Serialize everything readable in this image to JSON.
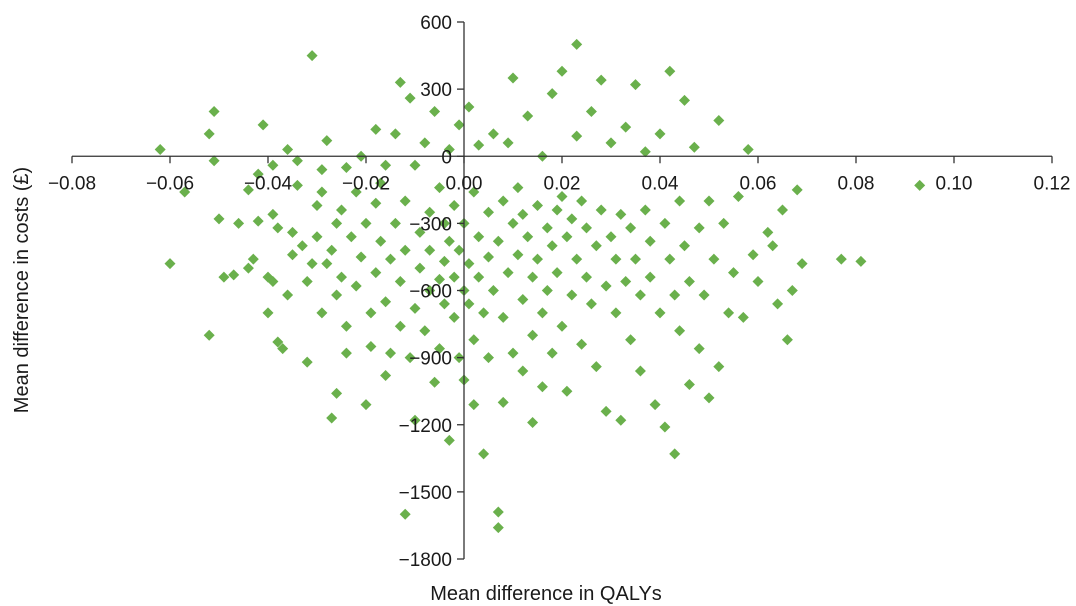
{
  "chart_data": {
    "type": "scatter",
    "xlabel": "Mean difference in QALYs",
    "ylabel": "Mean difference in costs (£)",
    "xlim": [
      -0.08,
      0.12
    ],
    "ylim": [
      -1800,
      600
    ],
    "x_ticks": [
      -0.08,
      -0.06,
      -0.04,
      -0.02,
      0.0,
      0.02,
      0.04,
      0.06,
      0.08,
      0.1,
      0.12
    ],
    "x_tick_labels": [
      "−0.08",
      "−0.06",
      "−0.04",
      "−0.02",
      "0.00",
      "0.02",
      "0.04",
      "0.06",
      "0.08",
      "0.10",
      "0.12"
    ],
    "y_ticks": [
      600,
      300,
      0,
      -300,
      -600,
      -900,
      -1200,
      -1500,
      -1800
    ],
    "y_tick_labels": [
      "600",
      "300",
      "0",
      "−300",
      "−600",
      "−900",
      "−1200",
      "−1500",
      "−1800"
    ],
    "grid": false,
    "legend": false,
    "marker": "diamond",
    "color": "#6ab04c",
    "points": [
      [
        -0.062,
        30
      ],
      [
        -0.06,
        -480
      ],
      [
        -0.057,
        -160
      ],
      [
        -0.052,
        100
      ],
      [
        -0.051,
        200
      ],
      [
        -0.051,
        -20
      ],
      [
        -0.052,
        -800
      ],
      [
        -0.05,
        -280
      ],
      [
        -0.049,
        -540
      ],
      [
        -0.047,
        -530
      ],
      [
        -0.046,
        -300
      ],
      [
        -0.044,
        -500
      ],
      [
        -0.043,
        -460
      ],
      [
        -0.042,
        -290
      ],
      [
        -0.044,
        -150
      ],
      [
        -0.041,
        140
      ],
      [
        -0.042,
        -80
      ],
      [
        -0.04,
        -540
      ],
      [
        -0.04,
        -700
      ],
      [
        -0.039,
        -560
      ],
      [
        -0.039,
        -40
      ],
      [
        -0.039,
        -260
      ],
      [
        -0.038,
        -320
      ],
      [
        -0.038,
        -830
      ],
      [
        -0.037,
        -860
      ],
      [
        -0.036,
        30
      ],
      [
        -0.036,
        -620
      ],
      [
        -0.035,
        -440
      ],
      [
        -0.035,
        -340
      ],
      [
        -0.034,
        -20
      ],
      [
        -0.034,
        -130
      ],
      [
        -0.033,
        -400
      ],
      [
        -0.032,
        -920
      ],
      [
        -0.032,
        -560
      ],
      [
        -0.031,
        -480
      ],
      [
        -0.031,
        450
      ],
      [
        -0.03,
        -220
      ],
      [
        -0.03,
        -360
      ],
      [
        -0.029,
        -700
      ],
      [
        -0.029,
        -160
      ],
      [
        -0.029,
        -60
      ],
      [
        -0.028,
        70
      ],
      [
        -0.028,
        -480
      ],
      [
        -0.027,
        -1170
      ],
      [
        -0.027,
        -420
      ],
      [
        -0.026,
        -1060
      ],
      [
        -0.026,
        -300
      ],
      [
        -0.026,
        -620
      ],
      [
        -0.025,
        -240
      ],
      [
        -0.025,
        -540
      ],
      [
        -0.024,
        -50
      ],
      [
        -0.024,
        -760
      ],
      [
        -0.024,
        -880
      ],
      [
        -0.023,
        -360
      ],
      [
        -0.022,
        -580
      ],
      [
        -0.022,
        -160
      ],
      [
        -0.021,
        0
      ],
      [
        -0.021,
        -450
      ],
      [
        -0.02,
        -300
      ],
      [
        -0.02,
        -1110
      ],
      [
        -0.019,
        -700
      ],
      [
        -0.019,
        -850
      ],
      [
        -0.018,
        -210
      ],
      [
        -0.018,
        -520
      ],
      [
        -0.018,
        120
      ],
      [
        -0.017,
        -120
      ],
      [
        -0.017,
        -380
      ],
      [
        -0.016,
        -980
      ],
      [
        -0.016,
        -650
      ],
      [
        -0.016,
        -40
      ],
      [
        -0.015,
        -460
      ],
      [
        -0.015,
        -880
      ],
      [
        -0.014,
        -300
      ],
      [
        -0.014,
        100
      ],
      [
        -0.013,
        330
      ],
      [
        -0.013,
        -560
      ],
      [
        -0.013,
        -760
      ],
      [
        -0.012,
        -1600
      ],
      [
        -0.012,
        -200
      ],
      [
        -0.012,
        -420
      ],
      [
        -0.011,
        260
      ],
      [
        -0.011,
        -900
      ],
      [
        -0.01,
        -40
      ],
      [
        -0.01,
        -680
      ],
      [
        -0.01,
        -1180
      ],
      [
        -0.009,
        -340
      ],
      [
        -0.009,
        -500
      ],
      [
        -0.008,
        -780
      ],
      [
        -0.008,
        60
      ],
      [
        -0.007,
        -250
      ],
      [
        -0.007,
        -600
      ],
      [
        -0.007,
        -420
      ],
      [
        -0.006,
        -1010
      ],
      [
        -0.006,
        200
      ],
      [
        -0.005,
        -550
      ],
      [
        -0.005,
        -140
      ],
      [
        -0.005,
        -860
      ],
      [
        -0.004,
        -300
      ],
      [
        -0.004,
        -470
      ],
      [
        -0.004,
        -660
      ],
      [
        -0.003,
        -380
      ],
      [
        -0.003,
        30
      ],
      [
        -0.003,
        -1270
      ],
      [
        -0.002,
        -540
      ],
      [
        -0.002,
        -220
      ],
      [
        -0.002,
        -720
      ],
      [
        -0.001,
        140
      ],
      [
        -0.001,
        -420
      ],
      [
        -0.001,
        -900
      ],
      [
        0.0,
        -600
      ],
      [
        0.0,
        -300
      ],
      [
        0.0,
        -1000
      ],
      [
        0.001,
        -480
      ],
      [
        0.001,
        220
      ],
      [
        0.001,
        -660
      ],
      [
        0.002,
        -160
      ],
      [
        0.002,
        -820
      ],
      [
        0.002,
        -1110
      ],
      [
        0.003,
        -360
      ],
      [
        0.003,
        -540
      ],
      [
        0.003,
        50
      ],
      [
        0.004,
        -1330
      ],
      [
        0.004,
        -700
      ],
      [
        0.005,
        -450
      ],
      [
        0.005,
        -250
      ],
      [
        0.005,
        -900
      ],
      [
        0.006,
        -600
      ],
      [
        0.006,
        100
      ],
      [
        0.007,
        -1590
      ],
      [
        0.007,
        -1660
      ],
      [
        0.007,
        -380
      ],
      [
        0.008,
        -200
      ],
      [
        0.008,
        -720
      ],
      [
        0.008,
        -1100
      ],
      [
        0.009,
        -520
      ],
      [
        0.009,
        60
      ],
      [
        0.01,
        -300
      ],
      [
        0.01,
        -880
      ],
      [
        0.01,
        350
      ],
      [
        0.011,
        -440
      ],
      [
        0.011,
        -140
      ],
      [
        0.012,
        -640
      ],
      [
        0.012,
        -960
      ],
      [
        0.012,
        -260
      ],
      [
        0.013,
        -360
      ],
      [
        0.013,
        180
      ],
      [
        0.014,
        -540
      ],
      [
        0.014,
        -800
      ],
      [
        0.014,
        -1190
      ],
      [
        0.015,
        -220
      ],
      [
        0.015,
        -460
      ],
      [
        0.016,
        -700
      ],
      [
        0.016,
        0
      ],
      [
        0.016,
        -1030
      ],
      [
        0.017,
        -320
      ],
      [
        0.017,
        -600
      ],
      [
        0.018,
        -400
      ],
      [
        0.018,
        280
      ],
      [
        0.018,
        -880
      ],
      [
        0.019,
        -240
      ],
      [
        0.019,
        -520
      ],
      [
        0.02,
        -180
      ],
      [
        0.02,
        380
      ],
      [
        0.02,
        -760
      ],
      [
        0.021,
        -360
      ],
      [
        0.021,
        -1050
      ],
      [
        0.022,
        -620
      ],
      [
        0.022,
        -280
      ],
      [
        0.023,
        90
      ],
      [
        0.023,
        -460
      ],
      [
        0.023,
        500
      ],
      [
        0.024,
        -200
      ],
      [
        0.024,
        -840
      ],
      [
        0.025,
        -540
      ],
      [
        0.025,
        -320
      ],
      [
        0.026,
        -660
      ],
      [
        0.026,
        200
      ],
      [
        0.027,
        -400
      ],
      [
        0.027,
        -940
      ],
      [
        0.028,
        -240
      ],
      [
        0.028,
        340
      ],
      [
        0.029,
        -580
      ],
      [
        0.029,
        -1140
      ],
      [
        0.03,
        -360
      ],
      [
        0.03,
        60
      ],
      [
        0.031,
        -700
      ],
      [
        0.031,
        -460
      ],
      [
        0.032,
        -1180
      ],
      [
        0.032,
        -260
      ],
      [
        0.033,
        -560
      ],
      [
        0.033,
        130
      ],
      [
        0.034,
        -820
      ],
      [
        0.034,
        -320
      ],
      [
        0.035,
        -460
      ],
      [
        0.035,
        320
      ],
      [
        0.036,
        -620
      ],
      [
        0.036,
        -960
      ],
      [
        0.037,
        -240
      ],
      [
        0.037,
        20
      ],
      [
        0.038,
        -540
      ],
      [
        0.038,
        -380
      ],
      [
        0.039,
        -1110
      ],
      [
        0.04,
        -700
      ],
      [
        0.04,
        100
      ],
      [
        0.041,
        -300
      ],
      [
        0.041,
        -1210
      ],
      [
        0.042,
        -460
      ],
      [
        0.042,
        380
      ],
      [
        0.043,
        -620
      ],
      [
        0.043,
        -1330
      ],
      [
        0.044,
        -200
      ],
      [
        0.044,
        -780
      ],
      [
        0.045,
        250
      ],
      [
        0.045,
        -400
      ],
      [
        0.046,
        -1020
      ],
      [
        0.046,
        -560
      ],
      [
        0.047,
        40
      ],
      [
        0.048,
        -320
      ],
      [
        0.048,
        -860
      ],
      [
        0.049,
        -620
      ],
      [
        0.05,
        -200
      ],
      [
        0.05,
        -1080
      ],
      [
        0.051,
        -460
      ],
      [
        0.052,
        160
      ],
      [
        0.052,
        -940
      ],
      [
        0.053,
        -300
      ],
      [
        0.054,
        -700
      ],
      [
        0.055,
        -520
      ],
      [
        0.056,
        -180
      ],
      [
        0.057,
        -720
      ],
      [
        0.058,
        30
      ],
      [
        0.059,
        -440
      ],
      [
        0.06,
        -560
      ],
      [
        0.062,
        -340
      ],
      [
        0.063,
        -400
      ],
      [
        0.064,
        -660
      ],
      [
        0.065,
        -240
      ],
      [
        0.066,
        -820
      ],
      [
        0.067,
        -600
      ],
      [
        0.068,
        -150
      ],
      [
        0.069,
        -480
      ],
      [
        0.077,
        -460
      ],
      [
        0.081,
        -470
      ],
      [
        0.093,
        -130
      ]
    ]
  }
}
